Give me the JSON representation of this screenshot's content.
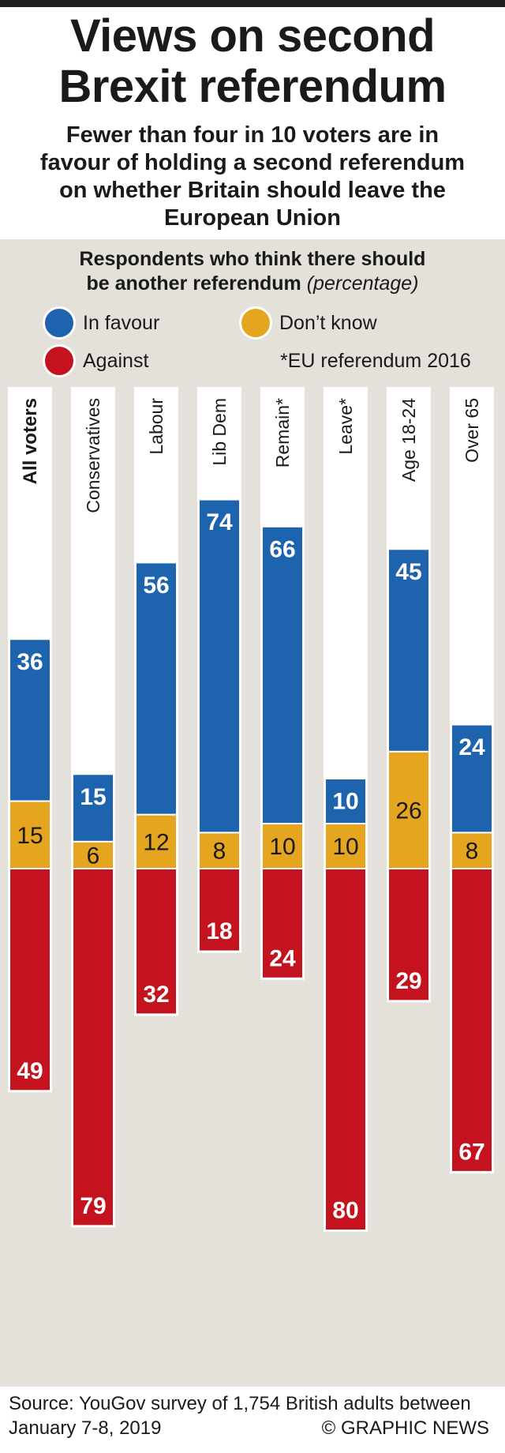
{
  "header": {
    "title_line1": "Views on second",
    "title_line2": "Brexit referendum",
    "subtitle_line1": "Fewer than four in 10 voters are in",
    "subtitle_line2": "favour of holding a second referendum",
    "subtitle_line3": "on whether Britain should leave the",
    "subtitle_line4": "European Union"
  },
  "chart_heading": {
    "line1": "Respondents who think there should",
    "line2": "be another referendum",
    "unit": "(percentage)"
  },
  "legend": {
    "in_favour": "In favour",
    "dont_know": "Don’t know",
    "against": "Against",
    "note": "*EU referendum 2016"
  },
  "colors": {
    "in_favour": "#1e63ad",
    "dont_know": "#e5a51f",
    "against": "#c4131e",
    "background": "#e4e1db"
  },
  "chart_data": {
    "type": "bar",
    "stacked": true,
    "orientation": "vertical",
    "title": "Views on second Brexit referendum",
    "ylabel": "Respondents who think there should be another referendum (percentage)",
    "categories": [
      "All voters",
      "Conservatives",
      "Labour",
      "Lib Dem",
      "Remain*",
      "Leave*",
      "Age 18-24",
      "Over 65"
    ],
    "series": [
      {
        "name": "In favour",
        "color": "#1e63ad",
        "values": [
          36,
          15,
          56,
          74,
          66,
          10,
          45,
          24
        ]
      },
      {
        "name": "Don’t know",
        "color": "#e5a51f",
        "values": [
          15,
          6,
          12,
          8,
          10,
          10,
          26,
          8
        ]
      },
      {
        "name": "Against",
        "color": "#c4131e",
        "values": [
          49,
          79,
          32,
          18,
          24,
          80,
          29,
          67
        ]
      }
    ],
    "highlight_category": "All voters",
    "grid": false,
    "legend_position": "top"
  },
  "footer": {
    "source_line1": "Source: YouGov survey of 1,754 British adults between",
    "source_line2": "January 7-8, 2019",
    "credit": "© GRAPHIC NEWS"
  }
}
